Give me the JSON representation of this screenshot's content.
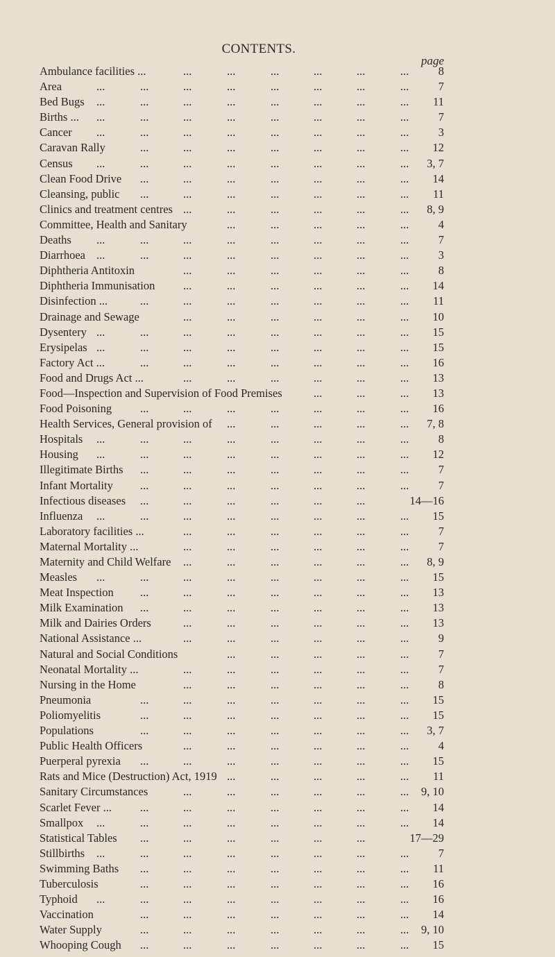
{
  "title": "CONTENTS.",
  "page_label": "page",
  "entries": [
    {
      "name": "Ambulance facilities ...",
      "page": "8"
    },
    {
      "name": "Area",
      "page": "7"
    },
    {
      "name": "Bed Bugs",
      "page": "11"
    },
    {
      "name": "Births ...",
      "page": "7"
    },
    {
      "name": "Cancer",
      "page": "3"
    },
    {
      "name": "Caravan Rally",
      "page": "12"
    },
    {
      "name": "Census",
      "page": "3, 7"
    },
    {
      "name": "Clean Food Drive",
      "page": "14"
    },
    {
      "name": "Cleansing, public",
      "page": "11"
    },
    {
      "name": "Clinics and treatment centres",
      "page": "8, 9"
    },
    {
      "name": "Committee, Health and Sanitary",
      "page": "4"
    },
    {
      "name": "Deaths",
      "page": "7"
    },
    {
      "name": "Diarrhoea",
      "page": "3"
    },
    {
      "name": "Diphtheria Antitoxin",
      "page": "8"
    },
    {
      "name": "Diphtheria Immunisation",
      "page": "14"
    },
    {
      "name": "Disinfection ...",
      "page": "11"
    },
    {
      "name": "Drainage and Sewage",
      "page": "10"
    },
    {
      "name": "Dysentery",
      "page": "15"
    },
    {
      "name": "Erysipelas",
      "page": "15"
    },
    {
      "name": "Factory Act ...",
      "page": "16"
    },
    {
      "name": "Food and Drugs Act ...",
      "page": "13"
    },
    {
      "name": "Food—Inspection and Supervision of Food Premises",
      "page": "13"
    },
    {
      "name": "Food Poisoning",
      "page": "16"
    },
    {
      "name": "Health Services, General provision of",
      "page": "7, 8"
    },
    {
      "name": "Hospitals",
      "page": "8"
    },
    {
      "name": "Housing",
      "page": "12"
    },
    {
      "name": "Illegitimate Births",
      "page": "7"
    },
    {
      "name": "Infant Mortality",
      "page": "7"
    },
    {
      "name": "Infectious diseases",
      "page": "14—16"
    },
    {
      "name": "Influenza",
      "page": "15"
    },
    {
      "name": "Laboratory facilities ...",
      "page": "7"
    },
    {
      "name": "Maternal Mortality ...",
      "page": "7"
    },
    {
      "name": "Maternity and Child Welfare",
      "page": "8, 9"
    },
    {
      "name": "Measles",
      "page": "15"
    },
    {
      "name": "Meat Inspection",
      "page": "13"
    },
    {
      "name": "Milk Examination",
      "page": "13"
    },
    {
      "name": "Milk and Dairies Orders",
      "page": "13"
    },
    {
      "name": "National Assistance ...",
      "page": "9"
    },
    {
      "name": "Natural and Social Conditions",
      "page": "7"
    },
    {
      "name": "Neonatal Mortality ...",
      "page": "7"
    },
    {
      "name": "Nursing in the Home",
      "page": "8"
    },
    {
      "name": "Pneumonia",
      "page": "15"
    },
    {
      "name": "Poliomyelitis",
      "page": "15"
    },
    {
      "name": "Populations",
      "page": "3, 7"
    },
    {
      "name": "Public Health Officers",
      "page": "4"
    },
    {
      "name": "Puerperal pyrexia",
      "page": "15"
    },
    {
      "name": "Rats and Mice (Destruction) Act, 1919",
      "page": "11"
    },
    {
      "name": "Sanitary Circumstances",
      "page": "9, 10"
    },
    {
      "name": "Scarlet Fever ...",
      "page": "14"
    },
    {
      "name": "Smallpox",
      "page": "14"
    },
    {
      "name": "Statistical Tables",
      "page": "17—29"
    },
    {
      "name": "Stillbirths",
      "page": "7"
    },
    {
      "name": "Swimming Baths",
      "page": "11"
    },
    {
      "name": "Tuberculosis",
      "page": "16"
    },
    {
      "name": "Typhoid",
      "page": "16"
    },
    {
      "name": "Vaccination",
      "page": "14"
    },
    {
      "name": "Water Supply",
      "page": "9, 10"
    },
    {
      "name": "Whooping Cough",
      "page": "15"
    }
  ]
}
